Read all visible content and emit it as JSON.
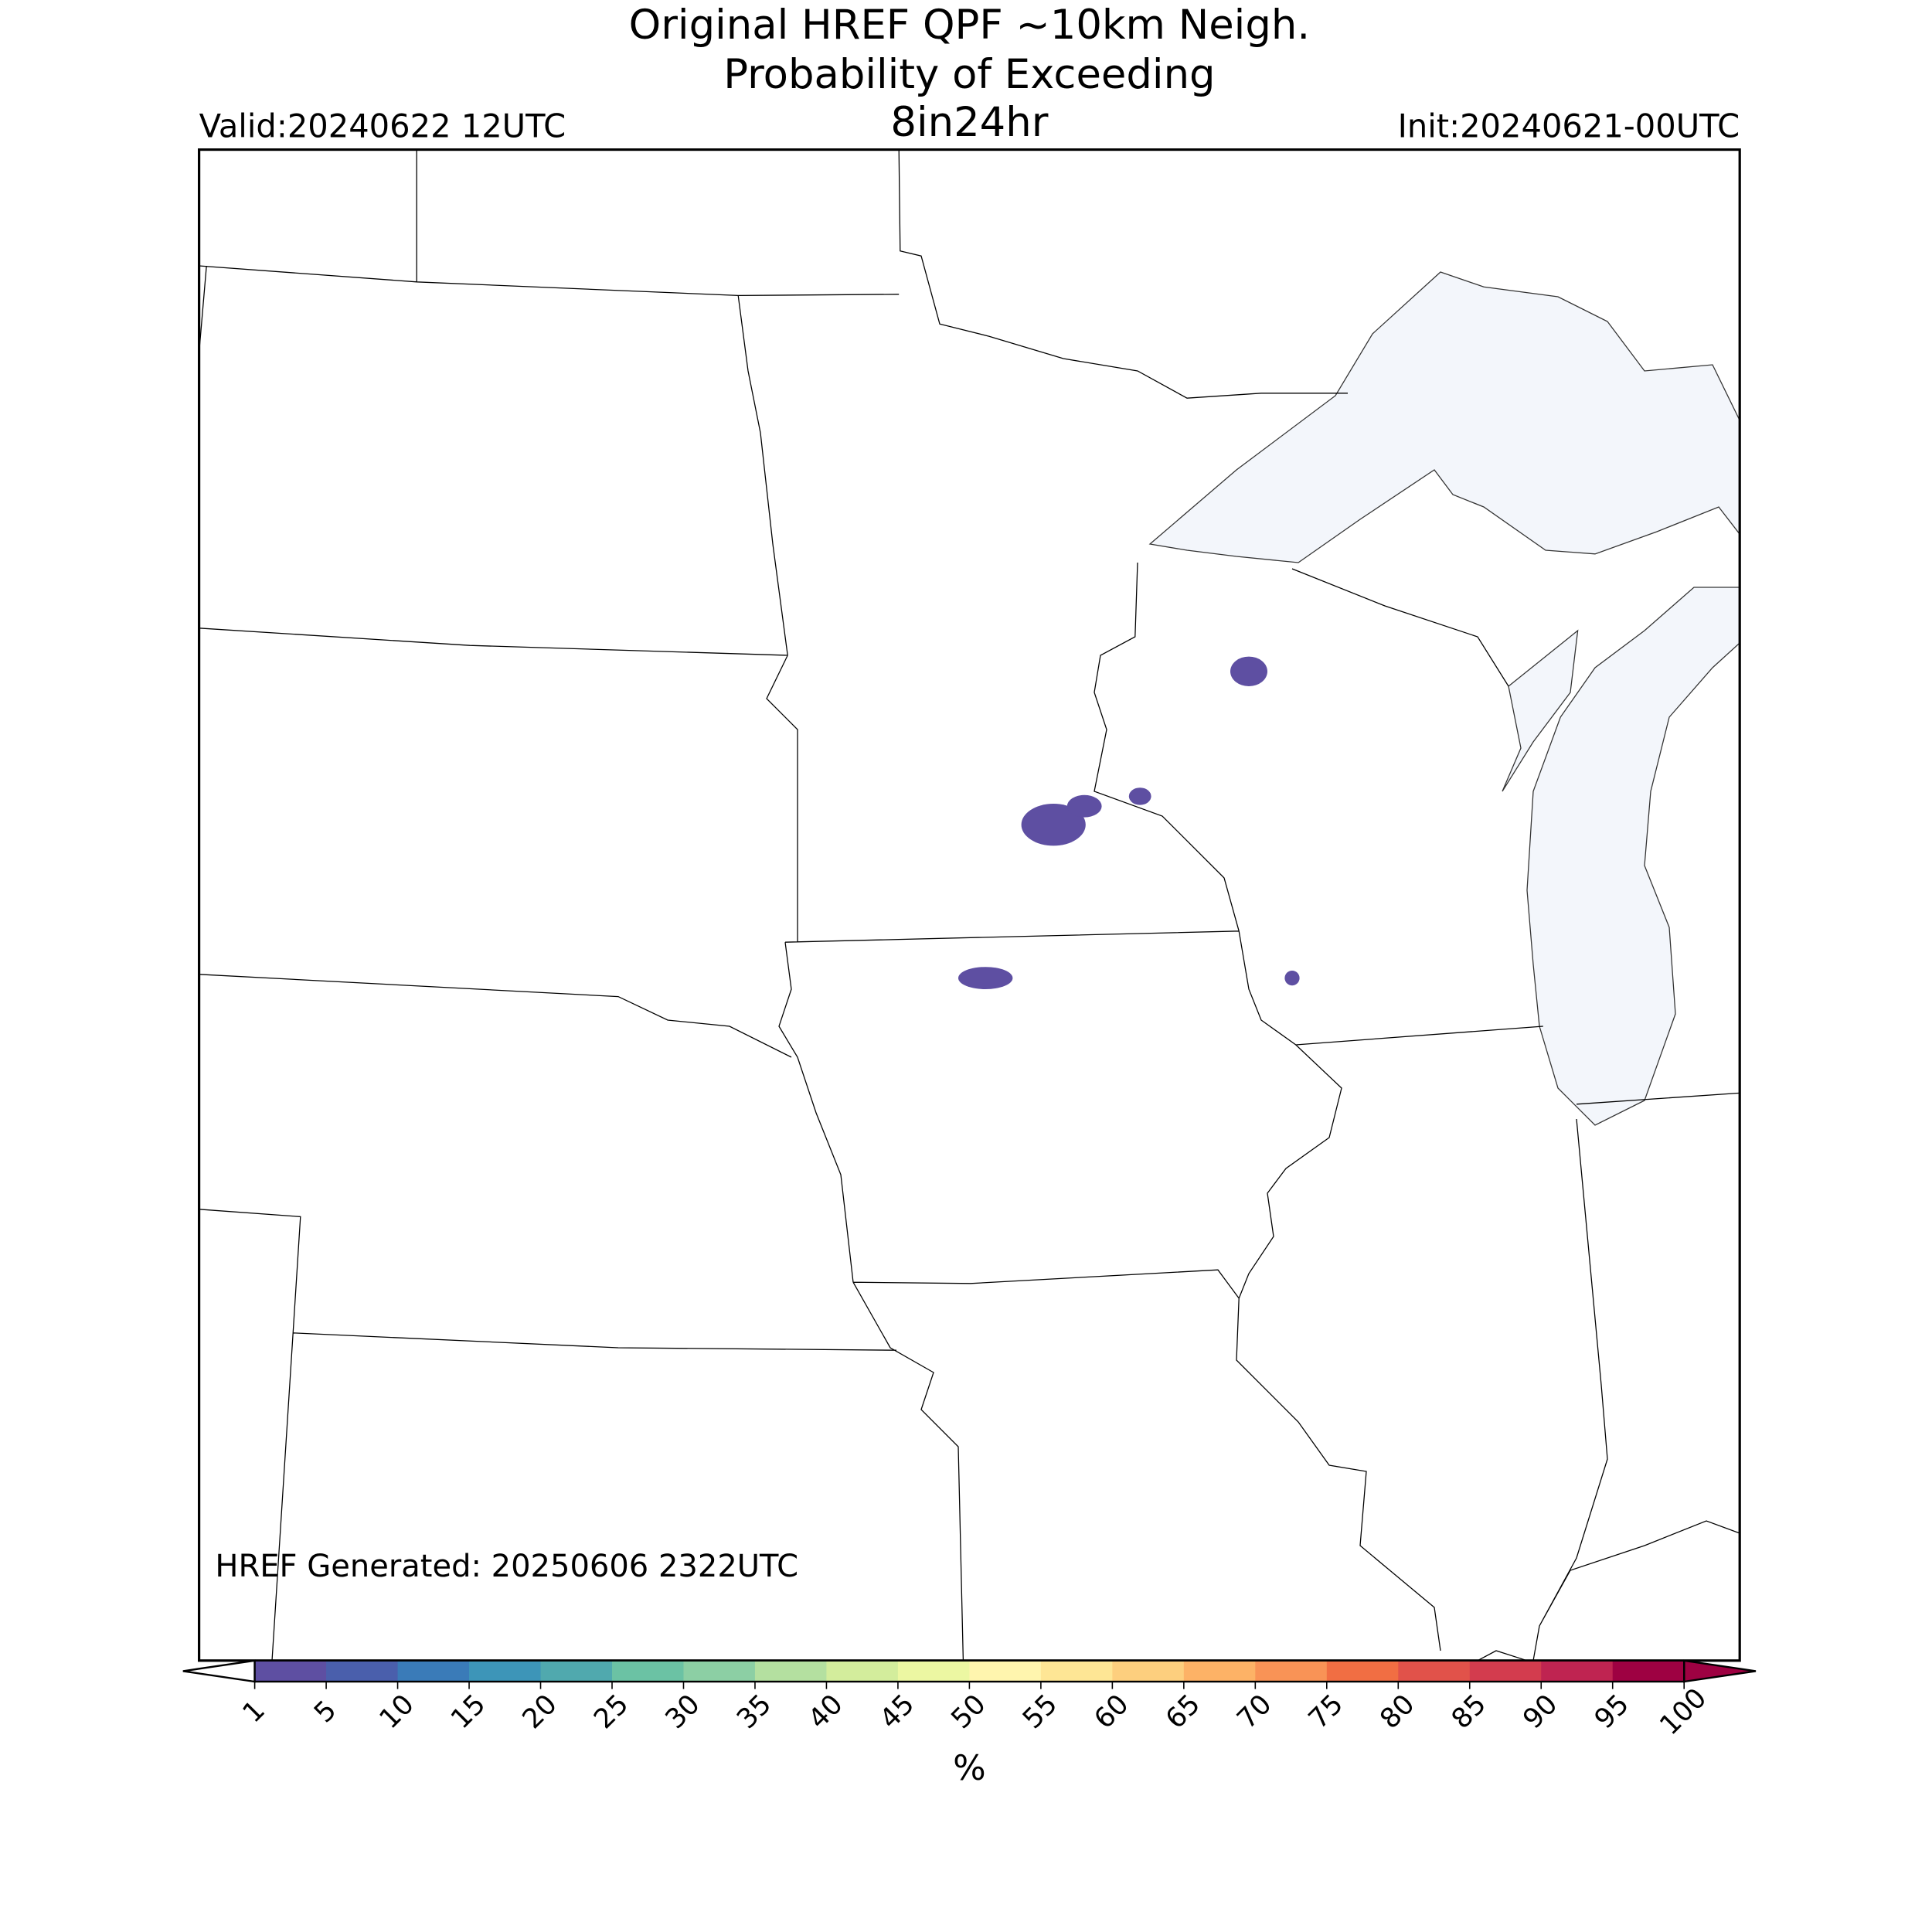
{
  "header": {
    "title_lines": [
      "Original HREF QPF ~10km Neigh.",
      "Probability of Exceeding",
      "8in24hr"
    ],
    "valid": "Valid:20240622 12UTC",
    "init": "Init:20240621-00UTC"
  },
  "annotation": "HREF Generated: 20250606 2322UTC",
  "colorbar": {
    "label": "%",
    "ticks": [
      1,
      5,
      10,
      15,
      20,
      25,
      30,
      35,
      40,
      45,
      50,
      55,
      60,
      65,
      70,
      75,
      80,
      85,
      90,
      95,
      100
    ],
    "colors": [
      "#5e4fa2",
      "#4a5fac",
      "#3a7bb8",
      "#3d95b8",
      "#50a9ae",
      "#6bc2a4",
      "#8ccfa4",
      "#b4e0a0",
      "#d3ed9c",
      "#ecf7a2",
      "#fff5ae",
      "#fee695",
      "#fdcf7e",
      "#fdb266",
      "#f99356",
      "#f16e43",
      "#e1524a",
      "#d33c4e",
      "#bf2451",
      "#9e0142"
    ],
    "under_color": "#ffffff",
    "over_color": "#9e0142"
  }
}
